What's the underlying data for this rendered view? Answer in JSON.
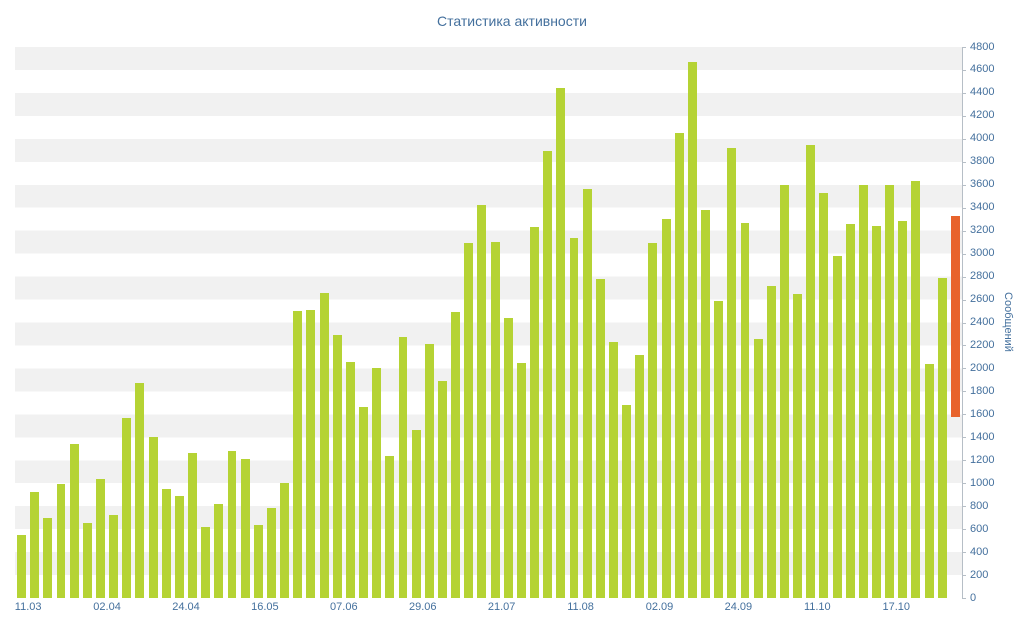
{
  "chart_data": {
    "type": "bar",
    "title": "Статистика активности",
    "ylabel": "Сообщений",
    "xlabel": "",
    "ylim": [
      0,
      4800
    ],
    "y_tick_step": 200,
    "grid": "horizontal-stripes",
    "legend": "none",
    "x_tick_labels": [
      "11.03",
      "02.04",
      "24.04",
      "16.05",
      "07.06",
      "29.06",
      "21.07",
      "11.08",
      "02.09",
      "24.09",
      "11.10",
      "17.10"
    ],
    "bars_per_x_tick": 6,
    "values": [
      550,
      920,
      700,
      990,
      1340,
      650,
      1040,
      720,
      1570,
      1870,
      1400,
      950,
      890,
      1260,
      620,
      820,
      1280,
      1210,
      640,
      780,
      1000,
      2500,
      2510,
      2660,
      2290,
      2060,
      1660,
      2000,
      1240,
      2270,
      1460,
      2210,
      1890,
      2490,
      3090,
      3420,
      3100,
      2440,
      2050,
      3230,
      3890,
      4440,
      3140,
      3560,
      2780,
      2230,
      1680,
      2120,
      3090,
      3300,
      4050,
      4670,
      3380,
      2590,
      3920,
      3270,
      2260,
      2720,
      3600,
      2650,
      3950,
      3530,
      2980,
      3260,
      3600,
      3240,
      3600,
      3280,
      3630,
      2040,
      2790
    ],
    "current_period_bar": {
      "from": 1580,
      "to": 3330
    },
    "colors": {
      "bar": "#b5d334",
      "highlight": "#e8632c",
      "stripe": "#f1f1f1",
      "axis_text": "#44709d",
      "axis_line": "#b6bec6",
      "background": "#ffffff"
    }
  }
}
